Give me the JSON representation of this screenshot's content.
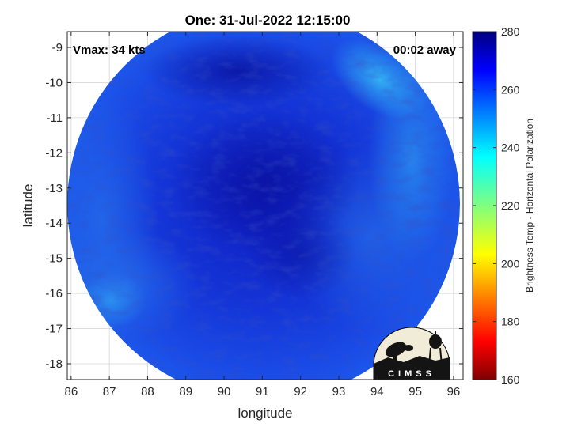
{
  "chart_data": {
    "type": "heatmap",
    "title": "One: 31-Jul-2022 12:15:00",
    "xlabel": "longitude",
    "ylabel": "latitude",
    "xlim": [
      85.9,
      96.25
    ],
    "ylim": [
      -18.45,
      -8.55
    ],
    "xticks": [
      86,
      87,
      88,
      89,
      90,
      91,
      92,
      93,
      94,
      95,
      96
    ],
    "yticks": [
      -9,
      -10,
      -11,
      -12,
      -13,
      -14,
      -15,
      -16,
      -17,
      -18
    ],
    "grid": true,
    "annotations": {
      "left": "Vmax: 34 kts",
      "right": "00:02 away"
    },
    "colorbar": {
      "label": "Brightness Temp - Horizontal Polarization",
      "range": [
        160,
        280
      ],
      "ticks": [
        160,
        180,
        200,
        220,
        240,
        260,
        280
      ],
      "colormap": "jet"
    },
    "swath": {
      "shape": "circular",
      "center_lon": 91.33,
      "center_lat": -13.55,
      "dominant_value_range": [
        245,
        270
      ]
    },
    "colors": {
      "cold_blue_dark": "#0a14b0",
      "mid_blue": "#1a4ae6",
      "light_blue": "#2a9cf0"
    }
  },
  "logo": {
    "text": "CIMSS"
  }
}
